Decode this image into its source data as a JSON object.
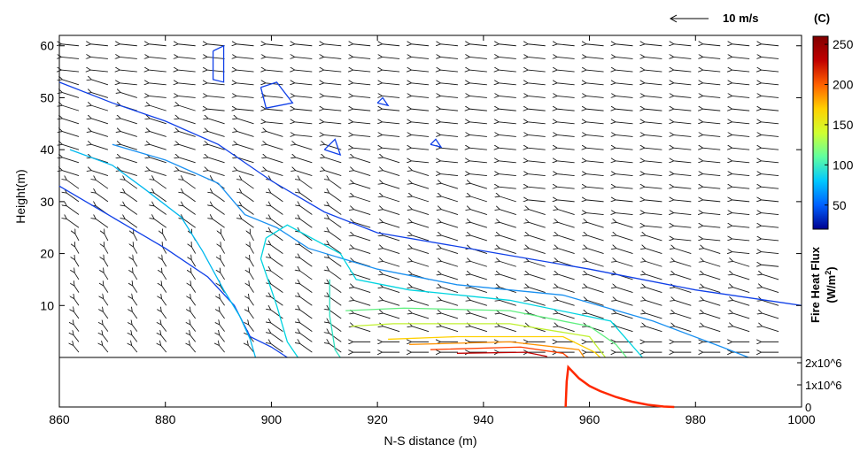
{
  "chart_data": [
    {
      "type": "contour+vector",
      "xlabel": "N-S distance (m)",
      "ylabel": "Height(m)",
      "xlim": [
        860,
        1000
      ],
      "ylim": [
        0,
        62
      ],
      "x_ticks": [
        860,
        880,
        900,
        920,
        940,
        960,
        980,
        1000
      ],
      "y_ticks": [
        10,
        20,
        30,
        40,
        50,
        60
      ],
      "colorbar": {
        "unit_label": "(C)",
        "range": [
          20,
          260
        ],
        "ticks": [
          50,
          100,
          150,
          200,
          250
        ],
        "colors": [
          "#00008f",
          "#0060ff",
          "#00c8ff",
          "#60ffa0",
          "#d0ff30",
          "#ffd000",
          "#ff6000",
          "#c00000",
          "#800000"
        ]
      },
      "vector_scale": {
        "label": "10 m/s",
        "value": 10
      },
      "wind_grid": {
        "x": [
          862,
          867.5,
          873,
          878.5,
          884,
          889.5,
          895,
          900.5,
          906,
          911.5,
          917,
          922.5,
          928,
          933.5,
          939,
          944.5,
          950,
          955.5,
          961,
          966.5,
          972,
          977.5,
          983,
          988.5,
          994
        ],
        "y": [
          1,
          3,
          5,
          7.5,
          10,
          12.5,
          15,
          17.5,
          20,
          22.5,
          25,
          27.5,
          30,
          32.5,
          35,
          37.5,
          40,
          42.5,
          45,
          47.5,
          50,
          52.5,
          55,
          57.5,
          60
        ]
      },
      "contours": [
        {
          "level": 30,
          "color": "#1040e8",
          "points": [
            [
              860,
              53
            ],
            [
              870,
              49
            ],
            [
              880,
              45.5
            ],
            [
              890,
              41
            ],
            [
              900,
              34
            ],
            [
              910,
              28
            ],
            [
              920,
              24
            ],
            [
              940,
              20.5
            ],
            [
              960,
              17
            ],
            [
              980,
              13
            ],
            [
              1000,
              10
            ]
          ]
        },
        {
          "level": 30,
          "color": "#1040e8",
          "points": [
            [
              860,
              33
            ],
            [
              870,
              27
            ],
            [
              880,
              21
            ],
            [
              888,
              15.5
            ],
            [
              893,
              10
            ],
            [
              896,
              4
            ],
            [
              900,
              2
            ],
            [
              903,
              0
            ]
          ]
        },
        {
          "level": 30,
          "color": "#1040e8",
          "points": [
            [
              889,
              59
            ],
            [
              891,
              60
            ],
            [
              891,
              53
            ],
            [
              889,
              53.5
            ],
            [
              889,
              59
            ]
          ]
        },
        {
          "level": 30,
          "color": "#1040e8",
          "points": [
            [
              898,
              52
            ],
            [
              901,
              53
            ],
            [
              904,
              49
            ],
            [
              899,
              48
            ],
            [
              898,
              52
            ]
          ]
        },
        {
          "level": 30,
          "color": "#1040e8",
          "points": [
            [
              910,
              40
            ],
            [
              912,
              42
            ],
            [
              913,
              39
            ],
            [
              910,
              40
            ]
          ]
        },
        {
          "level": 30,
          "color": "#1040e8",
          "points": [
            [
              920,
              49
            ],
            [
              921,
              50
            ],
            [
              922,
              48.5
            ],
            [
              920,
              49
            ]
          ]
        },
        {
          "level": 30,
          "color": "#1040e8",
          "points": [
            [
              930,
              41
            ],
            [
              931,
              42
            ],
            [
              932,
              40.5
            ],
            [
              930,
              41
            ]
          ]
        },
        {
          "level": 50,
          "color": "#1a90f0",
          "points": [
            [
              870,
              41
            ],
            [
              880,
              38
            ],
            [
              890,
              33.5
            ],
            [
              895,
              27.5
            ],
            [
              901,
              25
            ],
            [
              907,
              21
            ],
            [
              920,
              17
            ],
            [
              935,
              14
            ],
            [
              955,
              12
            ],
            [
              972,
              7
            ],
            [
              985,
              2
            ],
            [
              990,
              0
            ]
          ]
        },
        {
          "level": 70,
          "color": "#00b8ee",
          "points": [
            [
              862,
              40
            ],
            [
              870,
              37
            ],
            [
              876,
              32.5
            ],
            [
              883,
              27
            ],
            [
              887,
              20.5
            ],
            [
              891,
              13
            ],
            [
              894,
              8
            ],
            [
              896,
              3.5
            ],
            [
              897,
              0
            ]
          ]
        },
        {
          "level": 80,
          "color": "#00d4e0",
          "points": [
            [
              899,
              23
            ],
            [
              903,
              25.5
            ],
            [
              913,
              20
            ],
            [
              916,
              15
            ],
            [
              926,
              13
            ],
            [
              945,
              11
            ],
            [
              964,
              7
            ],
            [
              970,
              0
            ]
          ]
        },
        {
          "level": 80,
          "color": "#00d4e0",
          "points": [
            [
              899,
              23
            ],
            [
              898,
              19
            ],
            [
              901,
              10
            ],
            [
              903,
              3
            ],
            [
              905,
              0
            ]
          ]
        },
        {
          "level": 100,
          "color": "#30e0c0",
          "points": [
            [
              911,
              15
            ],
            [
              911,
              8
            ],
            [
              912,
              1.5
            ],
            [
              913,
              0
            ]
          ]
        },
        {
          "level": 120,
          "color": "#60ef80",
          "points": [
            [
              914,
              9
            ],
            [
              925,
              9.5
            ],
            [
              945,
              9
            ],
            [
              960,
              6
            ],
            [
              965,
              2.5
            ],
            [
              967,
              0
            ]
          ]
        },
        {
          "level": 150,
          "color": "#c0f030",
          "points": [
            [
              915,
              6
            ],
            [
              923,
              6.5
            ],
            [
              945,
              6.5
            ],
            [
              960,
              4
            ],
            [
              963,
              0
            ]
          ]
        },
        {
          "level": 180,
          "color": "#ffd000",
          "points": [
            [
              922,
              3.5
            ],
            [
              935,
              4
            ],
            [
              955,
              4
            ],
            [
              961,
              1
            ],
            [
              962,
              0
            ]
          ]
        },
        {
          "level": 210,
          "color": "#ff9000",
          "points": [
            [
              926,
              2.5
            ],
            [
              945,
              3
            ],
            [
              958,
              1.5
            ],
            [
              959,
              0
            ]
          ]
        },
        {
          "level": 230,
          "color": "#ff4000",
          "points": [
            [
              930,
              1.5
            ],
            [
              947,
              2
            ],
            [
              955,
              0.8
            ],
            [
              956,
              0
            ]
          ]
        },
        {
          "level": 250,
          "color": "#c00000",
          "points": [
            [
              935,
              0.8
            ],
            [
              948,
              1
            ],
            [
              952,
              0.2
            ]
          ]
        }
      ]
    },
    {
      "type": "line",
      "ylabel": "Fire Heat Flux",
      "ylabel_unit_prefix": "(W/m",
      "ylabel_unit_exp": "2",
      "ylabel_unit_suffix": ")",
      "xlim": [
        860,
        1000
      ],
      "ylim": [
        0,
        2000000
      ],
      "y_ticks": [
        0,
        1000000,
        2000000
      ],
      "y_tick_labels": [
        "0",
        "1x10^6",
        "2x10^6"
      ],
      "series": [
        {
          "color": "#ff2800",
          "x": [
            955.5,
            955.7,
            956,
            957,
            958,
            960,
            962,
            965,
            968,
            971,
            974,
            976
          ],
          "y": [
            0,
            1150000,
            1800000,
            1550000,
            1300000,
            950000,
            720000,
            450000,
            240000,
            100000,
            20000,
            0
          ]
        }
      ]
    }
  ]
}
